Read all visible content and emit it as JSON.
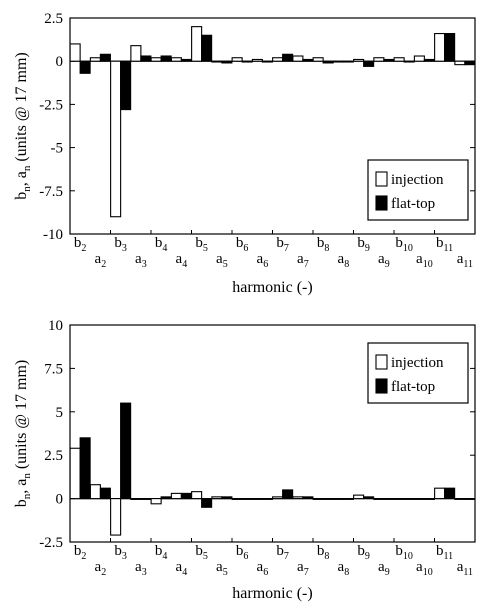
{
  "chart_data": [
    {
      "type": "bar",
      "xlabel": "harmonic (-)",
      "ylabel_main": "b",
      "ylabel_sub1": "n",
      "ylabel_mid": ", a",
      "ylabel_sub2": "n",
      "ylabel_tail": " (units @ 17 mm)",
      "ylim": [
        -10,
        2.5
      ],
      "yticks": [
        "2.5",
        "0",
        "-2.5",
        "-5",
        "-7.5",
        "-10"
      ],
      "categories": [
        "b2",
        "a2",
        "b3",
        "a3",
        "b4",
        "a4",
        "b5",
        "a5",
        "b6",
        "a6",
        "b7",
        "a7",
        "b8",
        "a8",
        "b9",
        "a9",
        "b10",
        "a10",
        "b11",
        "a11"
      ],
      "legend": "right",
      "series": [
        {
          "name": "injection",
          "color": "#ffffff",
          "values": [
            1.0,
            0.2,
            -9.0,
            0.9,
            0.2,
            0.2,
            2.0,
            0.0,
            0.2,
            0.1,
            0.2,
            0.3,
            0.2,
            0.0,
            0.1,
            0.2,
            0.2,
            0.3,
            1.6,
            -0.2
          ]
        },
        {
          "name": "flat-top",
          "color": "#000000",
          "values": [
            -0.7,
            0.4,
            -2.8,
            0.3,
            0.3,
            0.1,
            1.5,
            -0.1,
            0.0,
            0.0,
            0.4,
            0.1,
            -0.1,
            0.0,
            -0.3,
            0.1,
            0.0,
            0.1,
            1.6,
            -0.2
          ]
        }
      ]
    },
    {
      "type": "bar",
      "xlabel": "harmonic (-)",
      "ylabel_main": "b",
      "ylabel_sub1": "n",
      "ylabel_mid": ", a",
      "ylabel_sub2": "n",
      "ylabel_tail": " (units @ 17 mm)",
      "ylim": [
        -2.5,
        10
      ],
      "yticks": [
        "10",
        "7.5",
        "5",
        "2.5",
        "0",
        "-2.5"
      ],
      "categories": [
        "b2",
        "a2",
        "b3",
        "a3",
        "b4",
        "a4",
        "b5",
        "a5",
        "b6",
        "a6",
        "b7",
        "a7",
        "b8",
        "a8",
        "b9",
        "a9",
        "b10",
        "a10",
        "b11",
        "a11"
      ],
      "legend": "top-right",
      "series": [
        {
          "name": "injection",
          "color": "#ffffff",
          "values": [
            2.9,
            0.8,
            -2.1,
            0.0,
            -0.3,
            0.3,
            0.4,
            0.1,
            0.0,
            0.0,
            0.1,
            0.1,
            0.0,
            0.0,
            0.2,
            0.0,
            0.0,
            0.0,
            0.6,
            0.0
          ]
        },
        {
          "name": "flat-top",
          "color": "#000000",
          "values": [
            3.5,
            0.6,
            5.5,
            0.0,
            0.1,
            0.3,
            -0.5,
            0.1,
            0.0,
            0.0,
            0.5,
            0.1,
            0.0,
            0.0,
            0.1,
            0.0,
            0.0,
            0.0,
            0.6,
            0.0
          ]
        }
      ]
    }
  ]
}
